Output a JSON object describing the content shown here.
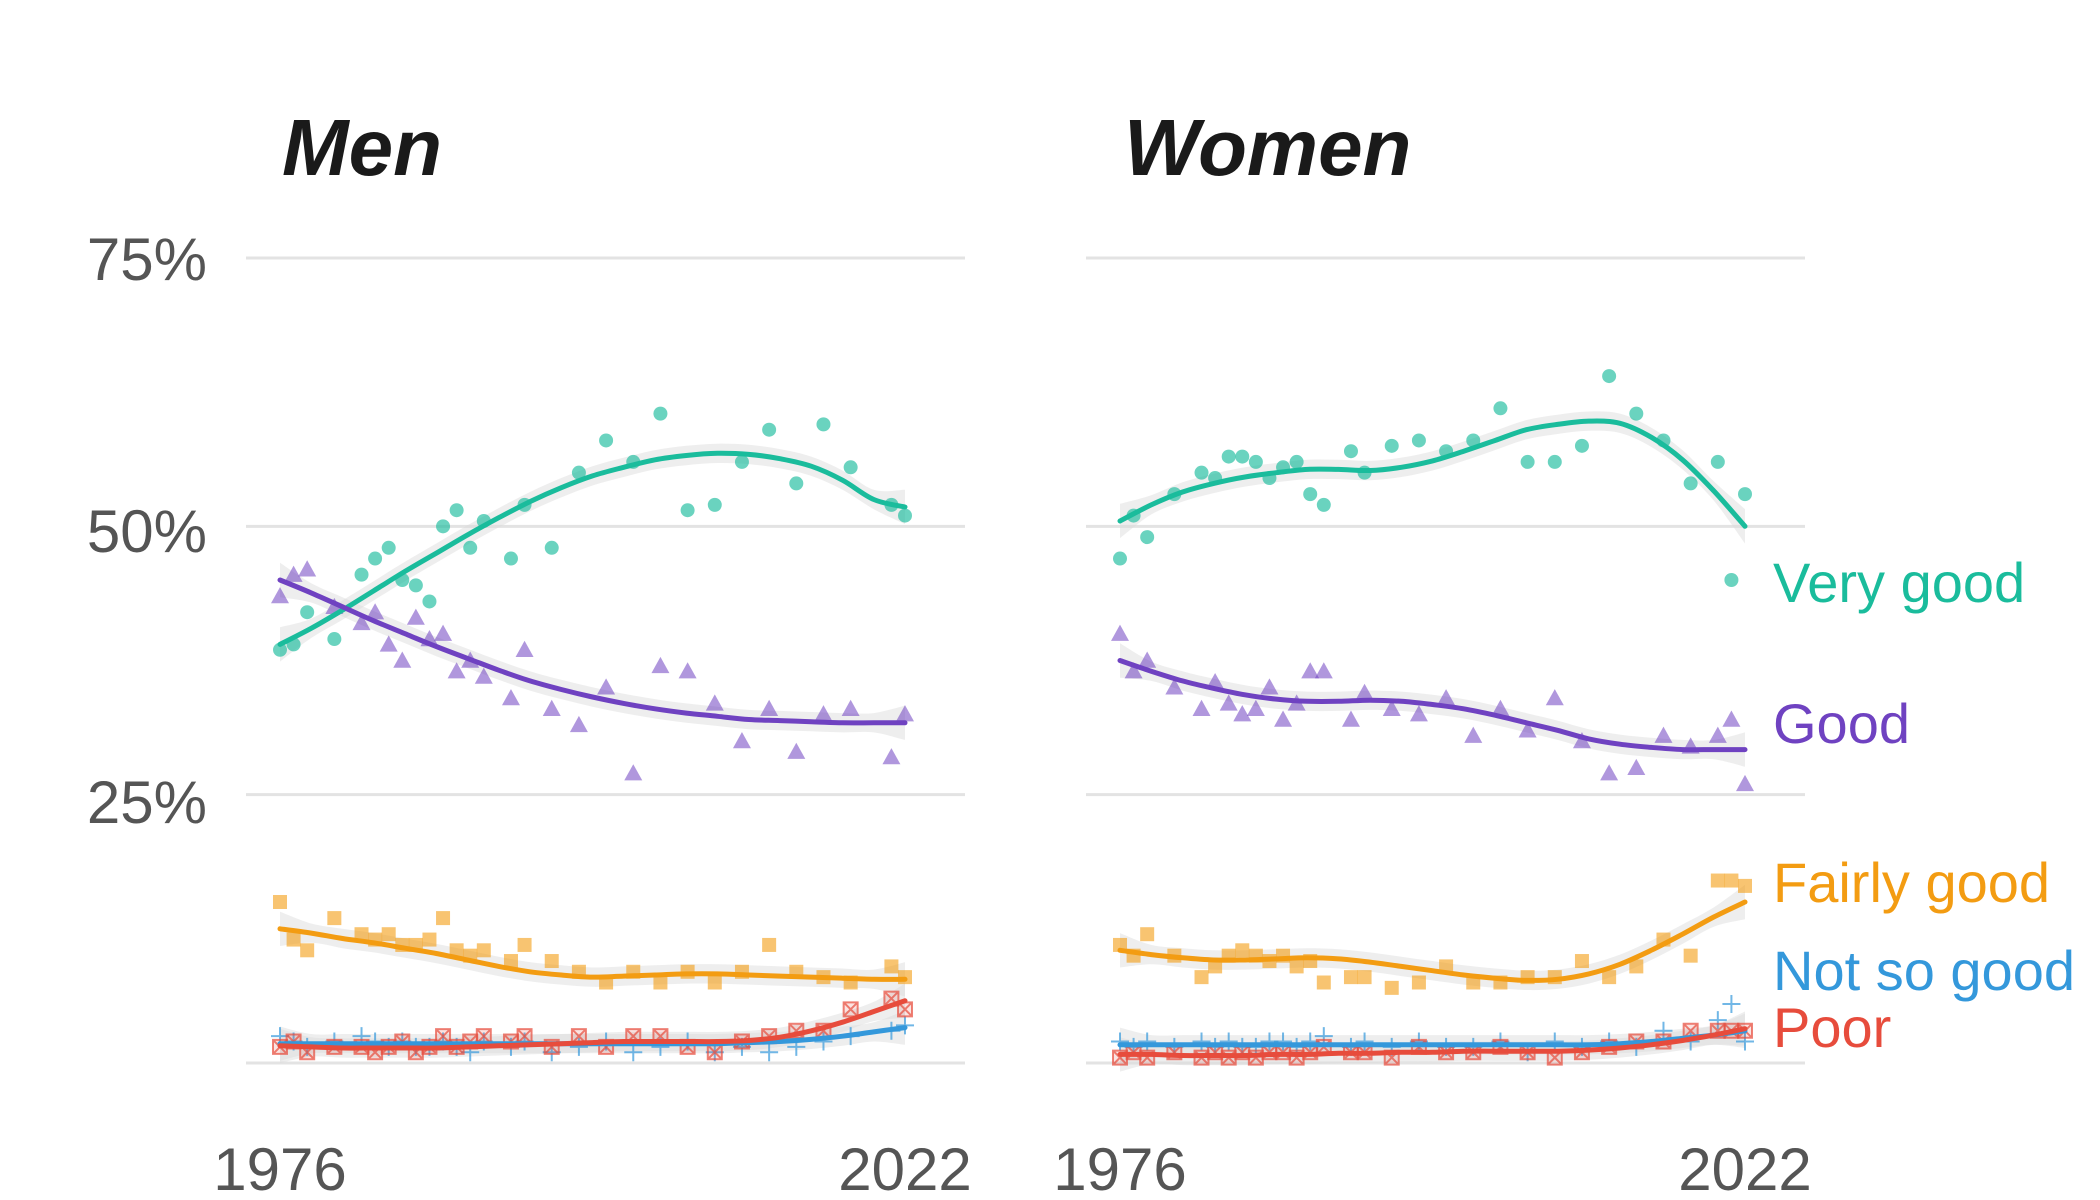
{
  "chart_data": [
    {
      "type": "scatter",
      "title": "Men",
      "xlabel": "",
      "ylabel": "",
      "x_ticks": [
        "1976",
        "2022"
      ],
      "y_ticks": [
        "25%",
        "50%",
        "75%"
      ],
      "xlim": [
        1976,
        2022
      ],
      "ylim": [
        0,
        75
      ],
      "grid": true,
      "series": [
        {
          "name": "Very good",
          "color": "#1abc9c",
          "marker": "circle",
          "x": [
            1976,
            1977,
            1978,
            1980,
            1982,
            1983,
            1984,
            1985,
            1986,
            1987,
            1988,
            1989,
            1990,
            1991,
            1993,
            1994,
            1996,
            1998,
            2000,
            2002,
            2004,
            2006,
            2008,
            2010,
            2012,
            2014,
            2016,
            2018,
            2021,
            2022
          ],
          "values": [
            38.5,
            39,
            42,
            39.5,
            45.5,
            47,
            48,
            45,
            44.5,
            43,
            50,
            51.5,
            48,
            50.5,
            47,
            52,
            48,
            55,
            58,
            56,
            60.5,
            51.5,
            52,
            56,
            59,
            54,
            59.5,
            55.5,
            52,
            51
          ],
          "trend": [
            39,
            40.5,
            42.2,
            44,
            45.8,
            47.5,
            49.2,
            50.8,
            52.3,
            53.6,
            54.7,
            55.5,
            56.2,
            56.6,
            56.8,
            56.7,
            56.3,
            55.6,
            54.3,
            52.5,
            51.8
          ]
        },
        {
          "name": "Good",
          "color": "#6f42c1",
          "marker": "triangle",
          "x": [
            1976,
            1977,
            1978,
            1980,
            1982,
            1983,
            1984,
            1985,
            1986,
            1987,
            1988,
            1989,
            1990,
            1991,
            1993,
            1994,
            1996,
            1998,
            2000,
            2002,
            2004,
            2006,
            2008,
            2010,
            2012,
            2014,
            2016,
            2018,
            2021,
            2022
          ],
          "values": [
            43.5,
            45.5,
            46,
            42.5,
            41,
            42,
            39,
            37.5,
            41.5,
            39.5,
            40,
            36.5,
            37.5,
            36,
            34,
            38.5,
            33,
            31.5,
            35,
            27,
            37,
            36.5,
            33.5,
            30,
            33,
            29,
            32.5,
            33,
            28.5,
            32.5
          ],
          "trend": [
            45,
            43.8,
            42.5,
            41.2,
            40,
            38.8,
            37.7,
            36.6,
            35.6,
            34.8,
            34.1,
            33.5,
            33,
            32.6,
            32.3,
            32,
            31.9,
            31.8,
            31.7,
            31.7,
            31.7
          ]
        },
        {
          "name": "Fairly good",
          "color": "#f39c12",
          "marker": "square",
          "x": [
            1976,
            1977,
            1978,
            1980,
            1982,
            1983,
            1984,
            1985,
            1986,
            1987,
            1988,
            1989,
            1990,
            1991,
            1993,
            1994,
            1996,
            1998,
            2000,
            2002,
            2004,
            2006,
            2008,
            2010,
            2012,
            2014,
            2016,
            2018,
            2021,
            2022
          ],
          "values": [
            15,
            11.5,
            10.5,
            13.5,
            12,
            11.5,
            12,
            11,
            11,
            11.5,
            13.5,
            10.5,
            10,
            10.5,
            9.5,
            11,
            9.5,
            8.5,
            7.5,
            8.5,
            7.5,
            8.5,
            7.5,
            8.5,
            11,
            8.5,
            8,
            7.5,
            9,
            8
          ],
          "trend": [
            12.5,
            12.1,
            11.6,
            11.2,
            10.7,
            10.2,
            9.6,
            9,
            8.5,
            8.2,
            8,
            8.1,
            8.2,
            8.3,
            8.3,
            8.2,
            8.1,
            8,
            7.9,
            7.8,
            7.8
          ]
        },
        {
          "name": "Not so good",
          "color": "#3498db",
          "marker": "plus",
          "x": [
            1976,
            1977,
            1978,
            1980,
            1982,
            1983,
            1984,
            1985,
            1986,
            1987,
            1988,
            1989,
            1990,
            1991,
            1993,
            1994,
            1996,
            1998,
            2000,
            2002,
            2004,
            2006,
            2008,
            2010,
            2012,
            2014,
            2016,
            2018,
            2021,
            2022
          ],
          "values": [
            2.5,
            2,
            1.5,
            2,
            2.5,
            2,
            1.5,
            2,
            1.5,
            1.5,
            2,
            1.5,
            1,
            2,
            1.5,
            2,
            1,
            1.5,
            2,
            1,
            1.5,
            2,
            1,
            1.5,
            1,
            1.5,
            2,
            2.5,
            3,
            3.5
          ],
          "trend": [
            1.8,
            1.8,
            1.8,
            1.8,
            1.8,
            1.8,
            1.8,
            1.8,
            1.8,
            1.8,
            1.8,
            1.8,
            1.8,
            1.8,
            1.8,
            1.9,
            2,
            2.2,
            2.5,
            2.9,
            3.3
          ]
        },
        {
          "name": "Poor",
          "color": "#e74c3c",
          "marker": "square-x",
          "x": [
            1976,
            1977,
            1978,
            1980,
            1982,
            1983,
            1984,
            1985,
            1986,
            1987,
            1988,
            1989,
            1990,
            1991,
            1993,
            1994,
            1996,
            1998,
            2000,
            2002,
            2004,
            2006,
            2008,
            2010,
            2012,
            2014,
            2016,
            2018,
            2021,
            2022
          ],
          "values": [
            1.5,
            2,
            1,
            1.5,
            1.5,
            1,
            1.5,
            2,
            1,
            1.5,
            2.5,
            1.5,
            2,
            2.5,
            2,
            2.5,
            1.5,
            2.5,
            1.5,
            2.5,
            2.5,
            1.5,
            1,
            2,
            2.5,
            3,
            3,
            5,
            6,
            5
          ],
          "trend": [
            1.6,
            1.5,
            1.4,
            1.4,
            1.4,
            1.4,
            1.5,
            1.6,
            1.7,
            1.8,
            1.9,
            2,
            2,
            2,
            2,
            2.1,
            2.4,
            3,
            3.8,
            4.8,
            5.8
          ]
        }
      ]
    },
    {
      "type": "scatter",
      "title": "Women",
      "xlabel": "",
      "ylabel": "",
      "x_ticks": [
        "1976",
        "2022"
      ],
      "xlim": [
        1976,
        2022
      ],
      "ylim": [
        0,
        75
      ],
      "grid": true,
      "series": [
        {
          "name": "Very good",
          "color": "#1abc9c",
          "marker": "circle",
          "x": [
            1976,
            1977,
            1978,
            1980,
            1982,
            1983,
            1984,
            1985,
            1986,
            1987,
            1988,
            1989,
            1990,
            1991,
            1993,
            1994,
            1996,
            1998,
            2000,
            2002,
            2004,
            2006,
            2008,
            2010,
            2012,
            2014,
            2016,
            2018,
            2020,
            2021,
            2022
          ],
          "values": [
            47,
            51,
            49,
            53,
            55,
            54.5,
            56.5,
            56.5,
            56,
            54.5,
            55.5,
            56,
            53,
            52,
            57,
            55,
            57.5,
            58,
            57,
            58,
            61,
            56,
            56,
            57.5,
            64,
            60.5,
            58,
            54,
            56,
            45,
            53
          ],
          "trend": [
            50.5,
            52,
            53.2,
            54,
            54.6,
            55,
            55.3,
            55.3,
            55.2,
            55.5,
            56.1,
            57,
            58,
            59,
            59.5,
            59.8,
            59.6,
            58.3,
            56.2,
            53.3,
            50
          ]
        },
        {
          "name": "Good",
          "color": "#6f42c1",
          "marker": "triangle",
          "x": [
            1976,
            1977,
            1978,
            1980,
            1982,
            1983,
            1984,
            1985,
            1986,
            1987,
            1988,
            1989,
            1990,
            1991,
            1993,
            1994,
            1996,
            1998,
            2000,
            2002,
            2004,
            2006,
            2008,
            2010,
            2012,
            2014,
            2016,
            2018,
            2020,
            2021,
            2022
          ],
          "values": [
            40,
            36.5,
            37.5,
            35,
            33,
            35.5,
            33.5,
            32.5,
            33,
            35,
            32,
            33.5,
            36.5,
            36.5,
            32,
            34.5,
            33,
            32.5,
            34,
            30.5,
            33,
            31,
            34,
            30,
            27,
            27.5,
            30.5,
            29.5,
            30.5,
            32,
            26
          ],
          "trend": [
            37.5,
            36.5,
            35.6,
            34.9,
            34.3,
            33.9,
            33.7,
            33.7,
            33.8,
            33.7,
            33.4,
            33,
            32.4,
            31.7,
            31,
            30.2,
            29.7,
            29.4,
            29.2,
            29.2,
            29.2
          ]
        },
        {
          "name": "Fairly good",
          "color": "#f39c12",
          "marker": "square",
          "x": [
            1976,
            1977,
            1978,
            1980,
            1982,
            1983,
            1984,
            1985,
            1986,
            1987,
            1988,
            1989,
            1990,
            1991,
            1993,
            1994,
            1996,
            1998,
            2000,
            2002,
            2004,
            2006,
            2008,
            2010,
            2012,
            2014,
            2016,
            2018,
            2020,
            2021,
            2022
          ],
          "values": [
            11,
            10,
            12,
            10,
            8,
            9,
            10,
            10.5,
            10,
            9.5,
            10,
            9,
            9.5,
            7.5,
            8,
            8,
            7,
            7.5,
            9,
            7.5,
            7.5,
            8,
            8,
            9.5,
            8,
            9,
            11.5,
            10,
            17,
            17,
            16.5
          ],
          "trend": [
            10.5,
            10.1,
            9.8,
            9.6,
            9.6,
            9.7,
            9.8,
            9.7,
            9.4,
            9,
            8.6,
            8.2,
            7.9,
            7.7,
            7.8,
            8.3,
            9.2,
            10.5,
            12,
            13.6,
            15
          ]
        },
        {
          "name": "Not so good",
          "color": "#3498db",
          "marker": "plus",
          "x": [
            1976,
            1977,
            1978,
            1980,
            1982,
            1983,
            1984,
            1985,
            1986,
            1987,
            1988,
            1989,
            1990,
            1991,
            1993,
            1994,
            1996,
            1998,
            2000,
            2002,
            2004,
            2006,
            2008,
            2010,
            2012,
            2014,
            2016,
            2018,
            2020,
            2021,
            2022
          ],
          "values": [
            2,
            1.5,
            2,
            1.5,
            2,
            1.5,
            2,
            1.5,
            1.5,
            2,
            2,
            1.5,
            2,
            2.5,
            1.5,
            2,
            1.5,
            2,
            1.5,
            1.5,
            2,
            1,
            2,
            1.5,
            2,
            1.5,
            3,
            2,
            4,
            5.5,
            2
          ],
          "trend": [
            1.7,
            1.7,
            1.7,
            1.7,
            1.7,
            1.7,
            1.7,
            1.7,
            1.7,
            1.7,
            1.7,
            1.7,
            1.7,
            1.7,
            1.7,
            1.7,
            1.8,
            2,
            2.3,
            2.6,
            3
          ]
        },
        {
          "name": "Poor",
          "color": "#e74c3c",
          "marker": "square-x",
          "x": [
            1976,
            1977,
            1978,
            1980,
            1982,
            1983,
            1984,
            1985,
            1986,
            1987,
            1988,
            1989,
            1990,
            1991,
            1993,
            1994,
            1996,
            1998,
            2000,
            2002,
            2004,
            2006,
            2008,
            2010,
            2012,
            2014,
            2016,
            2018,
            2020,
            2021,
            2022
          ],
          "values": [
            0.5,
            1,
            0.5,
            1,
            0.5,
            1,
            0.5,
            1,
            0.5,
            1,
            1,
            0.5,
            1,
            1.5,
            1,
            1,
            0.5,
            1.5,
            1,
            1,
            1.5,
            1,
            0.5,
            1,
            1.5,
            2,
            2,
            3,
            3,
            3,
            3
          ],
          "trend": [
            0.8,
            0.8,
            0.7,
            0.7,
            0.7,
            0.8,
            0.8,
            0.9,
            0.9,
            1,
            1,
            1.1,
            1.1,
            1.1,
            1.1,
            1.2,
            1.4,
            1.7,
            2.1,
            2.6,
            3.2
          ]
        }
      ]
    }
  ]
}
